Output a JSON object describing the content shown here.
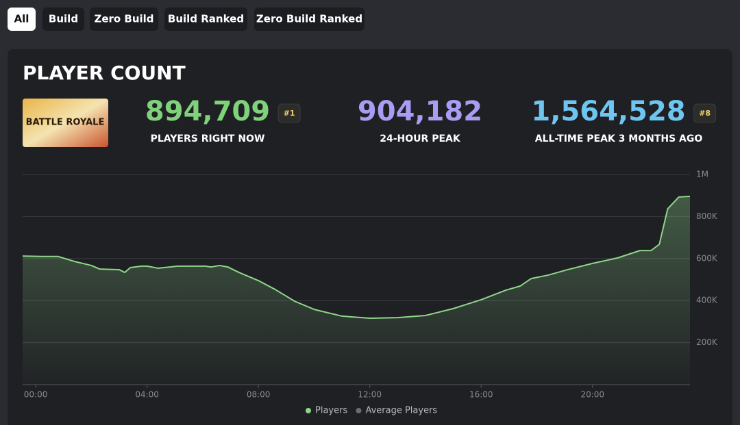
{
  "tabs": {
    "items": [
      "All",
      "Build",
      "Zero Build",
      "Build Ranked",
      "Zero Build Ranked"
    ],
    "active": 0
  },
  "card": {
    "title": "PLAYER COUNT",
    "thumbnail": "BATTLE ROYALE",
    "stats": [
      {
        "value": "894,709",
        "rank": "#1",
        "label": "PLAYERS RIGHT NOW",
        "color": "#7fd17a"
      },
      {
        "value": "904,182",
        "label": "24-HOUR PEAK",
        "color": "#aa9cf2"
      },
      {
        "value": "1,564,528",
        "rank": "#8",
        "label": "ALL-TIME PEAK 3 MONTHS AGO",
        "color": "#6ec5f0"
      }
    ]
  },
  "chart_data": {
    "type": "area",
    "x": [
      -0.47,
      0.2,
      0.8,
      1.4,
      2.0,
      2.3,
      3.0,
      3.2,
      3.4,
      3.8,
      4.0,
      4.4,
      5.1,
      6.1,
      6.3,
      6.6,
      6.9,
      7.3,
      8.0,
      8.6,
      9.3,
      10.0,
      11.0,
      12.0,
      13.0,
      14.0,
      15.0,
      16.0,
      16.9,
      17.4,
      17.8,
      18.4,
      19.1,
      20.0,
      20.9,
      21.7,
      22.1,
      22.4,
      22.7,
      23.1,
      23.5
    ],
    "series": [
      {
        "name": "Players",
        "color": "#8fd68a",
        "values": [
          612000,
          610000,
          610000,
          586000,
          567000,
          550000,
          547000,
          534000,
          557000,
          564000,
          564000,
          554000,
          564000,
          564000,
          560000,
          567000,
          560000,
          534000,
          495000,
          453000,
          397000,
          358000,
          326000,
          316000,
          319000,
          329000,
          362000,
          404000,
          450000,
          469000,
          505000,
          521000,
          547000,
          577000,
          603000,
          638000,
          638000,
          668000,
          837000,
          893000,
          896000
        ]
      },
      {
        "name": "Average Players",
        "color": "#6b6c70",
        "values": [
          null,
          null,
          null,
          null,
          null,
          null,
          null,
          null,
          null,
          null,
          null,
          null,
          null,
          null,
          null,
          null,
          null,
          null,
          null,
          null,
          null,
          null,
          null,
          null,
          null,
          null,
          null,
          null,
          null,
          null,
          null,
          null,
          null,
          null,
          null,
          null,
          null,
          null,
          null,
          null,
          null
        ]
      }
    ],
    "xlim": [
      -0.47,
      23.5
    ],
    "xticks": [
      {
        "value": 0,
        "label": "00:00"
      },
      {
        "value": 4,
        "label": "04:00"
      },
      {
        "value": 8,
        "label": "08:00"
      },
      {
        "value": 12,
        "label": "12:00"
      },
      {
        "value": 16,
        "label": "16:00"
      },
      {
        "value": 20,
        "label": "20:00"
      }
    ],
    "ylim": [
      0,
      1000000
    ],
    "yticks": [
      {
        "value": 200000,
        "label": "200K"
      },
      {
        "value": 400000,
        "label": "400K"
      },
      {
        "value": 600000,
        "label": "600K"
      },
      {
        "value": 800000,
        "label": "800K"
      },
      {
        "value": 1000000,
        "label": "1M"
      }
    ],
    "grid": true
  }
}
